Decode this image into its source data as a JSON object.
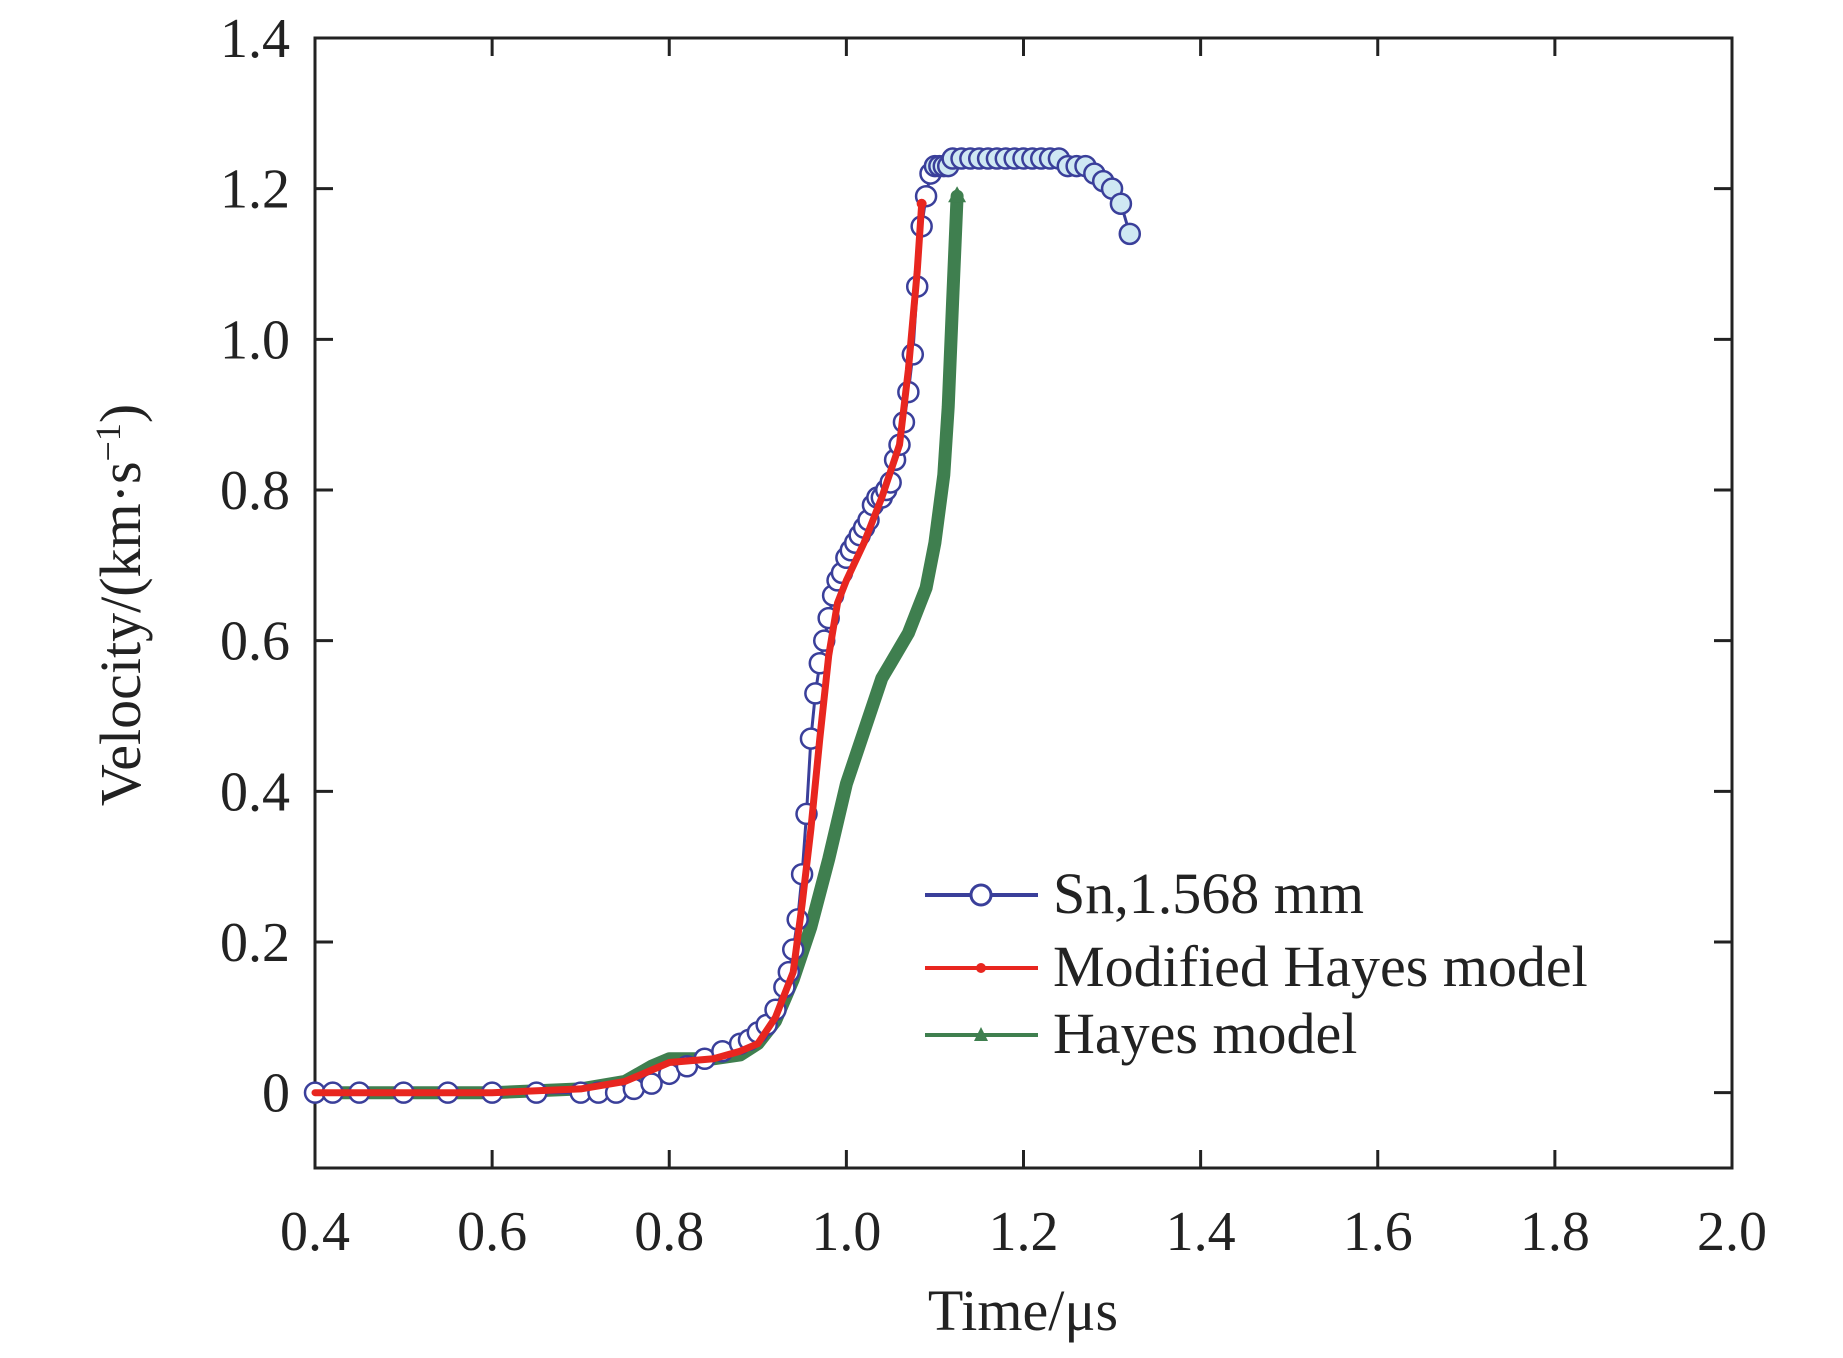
{
  "chart_data": {
    "type": "line",
    "title": "",
    "xlabel": "Time/μs",
    "ylabel_main": "Velocity/(km·s",
    "ylabel_sup": "−1",
    "ylabel_close": ")",
    "xlim": [
      0.4,
      2.0
    ],
    "ylim": [
      -0.1,
      1.4
    ],
    "xticks": [
      0.4,
      0.6,
      0.8,
      1.0,
      1.2,
      1.4,
      1.6,
      1.8,
      2.0
    ],
    "xtick_labels": [
      "0.4",
      "0.6",
      "0.8",
      "1.0",
      "1.2",
      "1.4",
      "1.6",
      "1.8",
      "2.0"
    ],
    "yticks": [
      0,
      0.2,
      0.4,
      0.6,
      0.8,
      1.0,
      1.2,
      1.4
    ],
    "ytick_labels": [
      "0",
      "0.2",
      "0.4",
      "0.6",
      "0.8",
      "1.0",
      "1.2",
      "1.4"
    ],
    "grid": false,
    "legend_position": "bottom-right",
    "series": [
      {
        "name": "Sn,1.568 mm",
        "color": "#3a3f9a",
        "marker": "circle",
        "marker_fill_early": "#3a5fb0",
        "marker_fill_late": "#cfe8f3",
        "x": [
          0.4,
          0.42,
          0.45,
          0.5,
          0.55,
          0.6,
          0.65,
          0.7,
          0.72,
          0.74,
          0.76,
          0.78,
          0.8,
          0.82,
          0.84,
          0.86,
          0.88,
          0.89,
          0.9,
          0.91,
          0.92,
          0.93,
          0.935,
          0.94,
          0.945,
          0.95,
          0.955,
          0.96,
          0.965,
          0.97,
          0.975,
          0.98,
          0.985,
          0.99,
          0.995,
          1.0,
          1.005,
          1.01,
          1.015,
          1.02,
          1.025,
          1.03,
          1.035,
          1.04,
          1.045,
          1.05,
          1.055,
          1.06,
          1.065,
          1.07,
          1.075,
          1.08,
          1.085,
          1.09,
          1.095,
          1.1,
          1.105,
          1.11,
          1.115,
          1.12,
          1.13,
          1.14,
          1.15,
          1.16,
          1.17,
          1.18,
          1.19,
          1.2,
          1.21,
          1.22,
          1.23,
          1.24,
          1.25,
          1.26,
          1.27,
          1.28,
          1.29,
          1.3,
          1.31,
          1.32
        ],
        "y": [
          0.0,
          0.0,
          0.0,
          0.0,
          0.0,
          0.0,
          0.0,
          0.0,
          0.0,
          0.0,
          0.005,
          0.012,
          0.025,
          0.035,
          0.045,
          0.055,
          0.065,
          0.07,
          0.08,
          0.09,
          0.11,
          0.14,
          0.16,
          0.19,
          0.23,
          0.29,
          0.37,
          0.47,
          0.53,
          0.57,
          0.6,
          0.63,
          0.66,
          0.68,
          0.69,
          0.71,
          0.72,
          0.73,
          0.74,
          0.75,
          0.76,
          0.78,
          0.79,
          0.79,
          0.8,
          0.81,
          0.84,
          0.86,
          0.89,
          0.93,
          0.98,
          1.07,
          1.15,
          1.19,
          1.22,
          1.23,
          1.23,
          1.23,
          1.23,
          1.24,
          1.24,
          1.24,
          1.24,
          1.24,
          1.24,
          1.24,
          1.24,
          1.24,
          1.24,
          1.24,
          1.24,
          1.24,
          1.23,
          1.23,
          1.23,
          1.22,
          1.21,
          1.2,
          1.18,
          1.14
        ]
      },
      {
        "name": "Modified Hayes model",
        "color": "#e8261f",
        "marker": "dot",
        "x": [
          0.4,
          0.5,
          0.6,
          0.7,
          0.75,
          0.78,
          0.8,
          0.85,
          0.88,
          0.9,
          0.92,
          0.94,
          0.95,
          0.96,
          0.97,
          0.98,
          0.99,
          1.0,
          1.02,
          1.04,
          1.06,
          1.07,
          1.08,
          1.085
        ],
        "y": [
          0.0,
          0.0,
          0.0,
          0.005,
          0.015,
          0.03,
          0.04,
          0.045,
          0.055,
          0.065,
          0.1,
          0.16,
          0.25,
          0.35,
          0.47,
          0.58,
          0.65,
          0.68,
          0.73,
          0.79,
          0.86,
          0.96,
          1.09,
          1.18
        ]
      },
      {
        "name": "Hayes model",
        "color": "#3f7f4f",
        "marker": "triangle",
        "x": [
          0.4,
          0.5,
          0.6,
          0.7,
          0.75,
          0.78,
          0.8,
          0.85,
          0.88,
          0.9,
          0.92,
          0.94,
          0.96,
          0.98,
          1.0,
          1.02,
          1.04,
          1.05,
          1.07,
          1.09,
          1.1,
          1.11,
          1.115,
          1.12,
          1.125
        ],
        "y": [
          0.0,
          0.0,
          0.0,
          0.005,
          0.015,
          0.035,
          0.045,
          0.045,
          0.05,
          0.065,
          0.095,
          0.15,
          0.22,
          0.31,
          0.41,
          0.48,
          0.55,
          0.57,
          0.61,
          0.67,
          0.73,
          0.82,
          0.91,
          1.05,
          1.19
        ]
      }
    ]
  }
}
